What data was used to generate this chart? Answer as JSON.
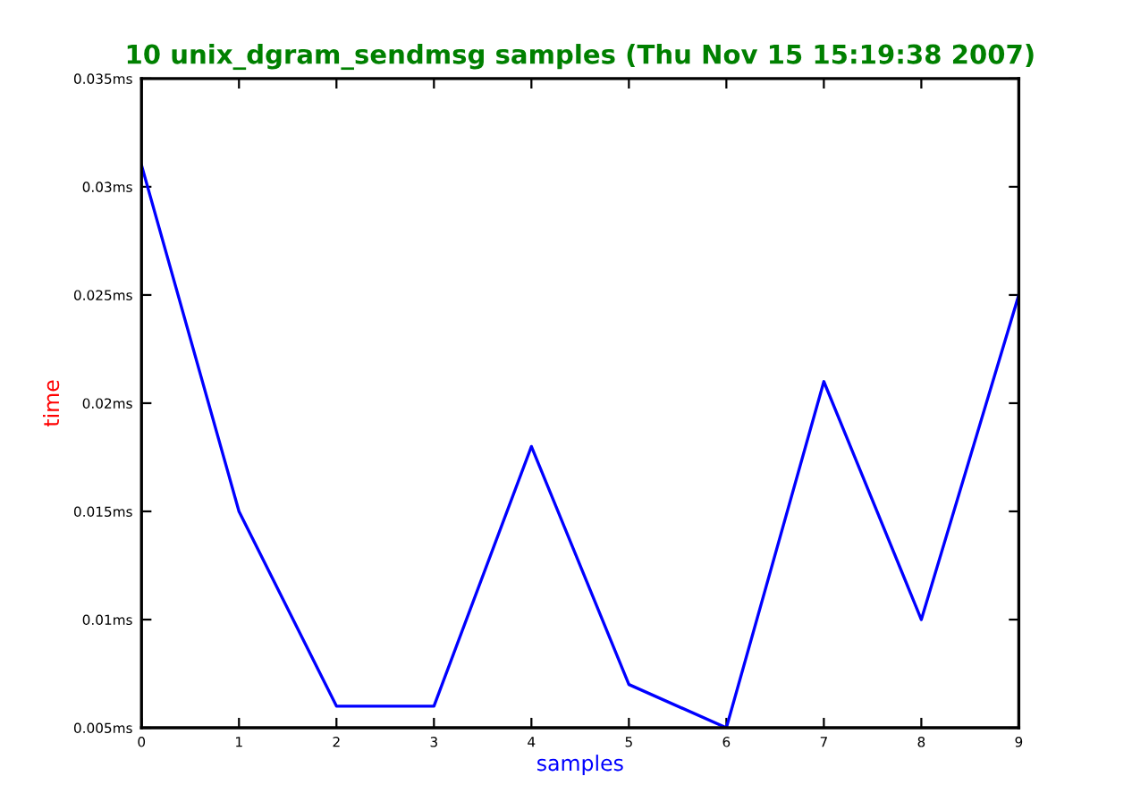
{
  "chart_data": {
    "type": "line",
    "title": "10 unix_dgram_sendmsg samples (Thu Nov 15 15:19:38 2007)",
    "xlabel": "samples",
    "ylabel": "time",
    "x": [
      0,
      1,
      2,
      3,
      4,
      5,
      6,
      7,
      8,
      9
    ],
    "series": [
      {
        "color": "#0000ff",
        "values": [
          0.031,
          0.015,
          0.006,
          0.006,
          0.018,
          0.007,
          0.005,
          0.021,
          0.01,
          0.025
        ]
      }
    ],
    "xlim": [
      0,
      9
    ],
    "xticks": [
      0,
      1,
      2,
      3,
      4,
      5,
      6,
      7,
      8,
      9
    ],
    "ylim": [
      0.005,
      0.035
    ],
    "yticks": [
      {
        "value": 0.005,
        "label": "0.005ms"
      },
      {
        "value": 0.01,
        "label": "0.01ms"
      },
      {
        "value": 0.015,
        "label": "0.015ms"
      },
      {
        "value": 0.02,
        "label": "0.02ms"
      },
      {
        "value": 0.025,
        "label": "0.025ms"
      },
      {
        "value": 0.03,
        "label": "0.03ms"
      },
      {
        "value": 0.035,
        "label": "0.035ms"
      }
    ],
    "grid": false,
    "legend": false,
    "marker": "none",
    "line_style": "solid"
  }
}
